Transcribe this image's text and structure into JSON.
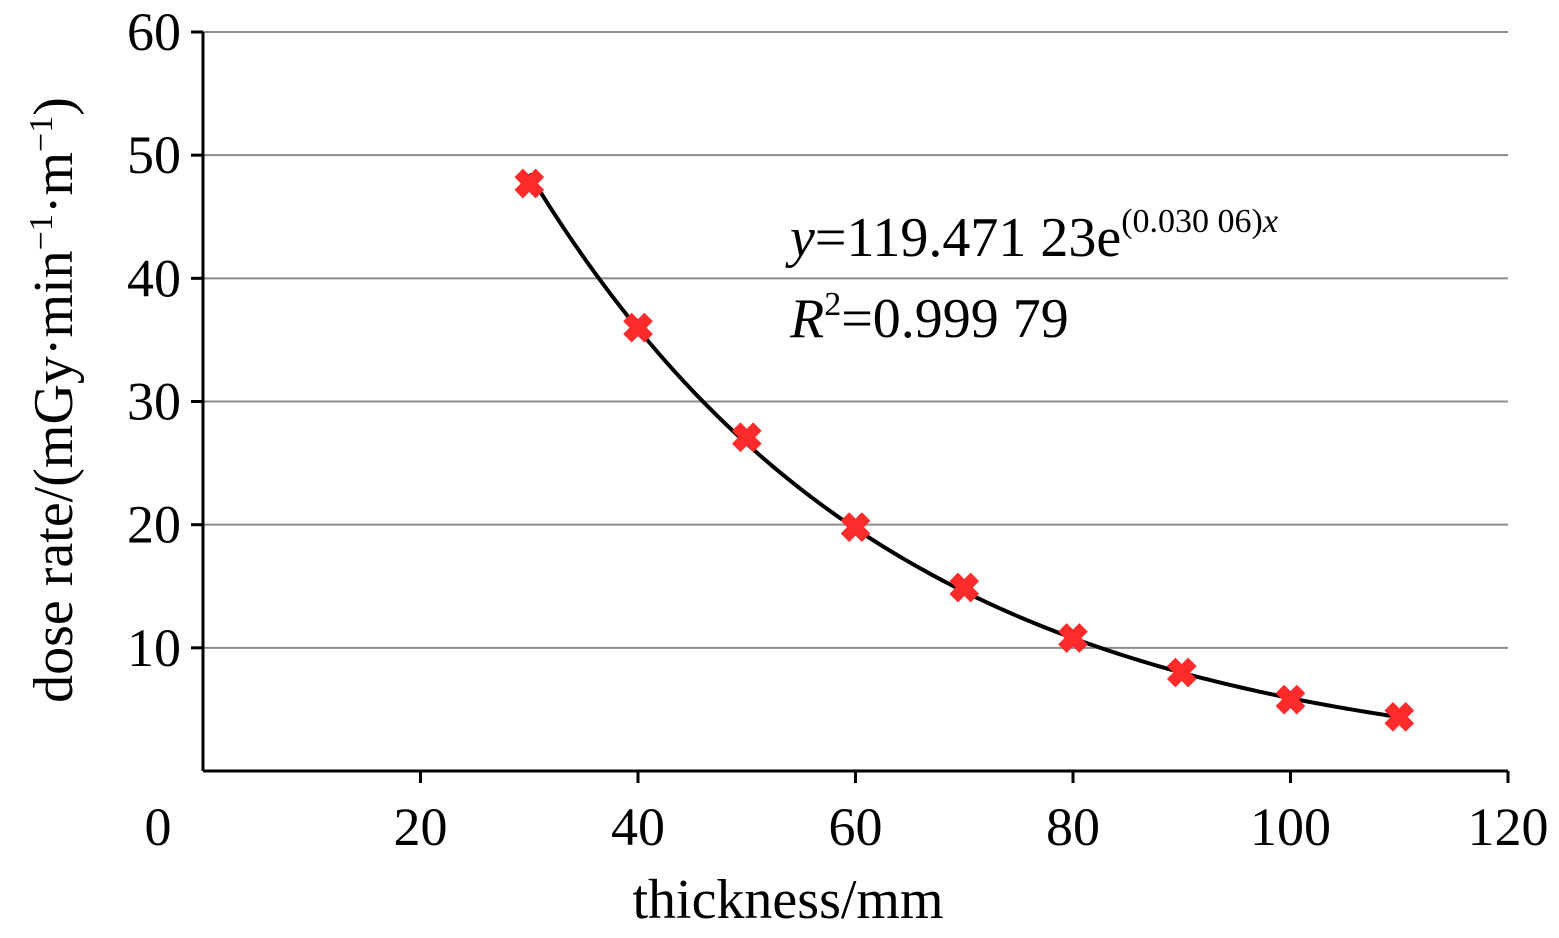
{
  "chart_data": {
    "type": "scatter",
    "x": [
      30,
      40,
      50,
      60,
      70,
      80,
      90,
      100,
      110
    ],
    "y": [
      47.7,
      36.0,
      27.1,
      19.8,
      14.9,
      10.8,
      8.0,
      5.8,
      4.4
    ],
    "xlabel": "thickness/mm",
    "ylabel": {
      "prefix": "dose rate/(mGy·min",
      "exp1": "−1",
      "mid": "·m",
      "exp2": "−1",
      "suffix": ")"
    },
    "xlim": [
      0,
      120
    ],
    "ylim": [
      0,
      60
    ],
    "xticks": [
      "0",
      "20",
      "40",
      "60",
      "80",
      "100",
      "120"
    ],
    "yticks": [
      "10",
      "20",
      "30",
      "40",
      "50",
      "60"
    ],
    "grid": "horizontal",
    "marker_color": "#ff2a2a",
    "curve_color": "#000000",
    "trendline": {
      "type": "exponential",
      "a": 119.47123,
      "b": 0.03006
    },
    "annotations": {
      "eq_y": "y",
      "eq_mid": "=119.471 23e",
      "eq_sup_a": "(0.030 06)",
      "eq_sup_x": "x",
      "r2_r": "R",
      "r2_sup": "2",
      "r2_val": "=0.999 79"
    }
  }
}
